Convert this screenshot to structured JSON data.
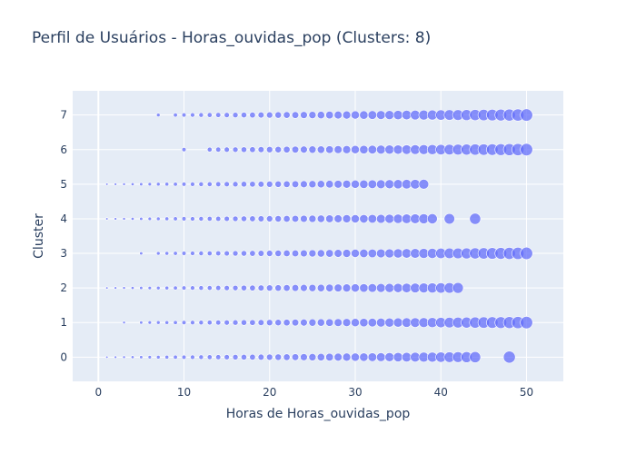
{
  "chart_data": {
    "type": "scatter",
    "title": "Perfil de Usuários - Horas_ouvidas_pop (Clusters: 8)",
    "xlabel": "Horas de Horas_ouvidas_pop",
    "ylabel": "Cluster",
    "xlim": [
      -3,
      54.3
    ],
    "ylim": [
      -0.7,
      7.7
    ],
    "xticks": [
      0,
      10,
      20,
      30,
      40,
      50
    ],
    "yticks": [
      0,
      1,
      2,
      3,
      4,
      5,
      6,
      7
    ],
    "grid": true,
    "marker_color": "#636efa",
    "plot_bg": "#e5ecf6",
    "series": [
      {
        "cluster": 7,
        "x": [
          7,
          9,
          10,
          11,
          12,
          13,
          14,
          15,
          16,
          17,
          18,
          19,
          20,
          21,
          22,
          23,
          24,
          25,
          26,
          27,
          28,
          29,
          30,
          31,
          32,
          33,
          34,
          35,
          36,
          37,
          38,
          39,
          40,
          41,
          42,
          43,
          44,
          45,
          46,
          47,
          48,
          49,
          50
        ]
      },
      {
        "cluster": 6,
        "x": [
          10,
          13,
          14,
          15,
          16,
          17,
          18,
          19,
          20,
          21,
          22,
          23,
          24,
          25,
          26,
          27,
          28,
          29,
          30,
          31,
          32,
          33,
          34,
          35,
          36,
          37,
          38,
          39,
          40,
          41,
          42,
          43,
          44,
          45,
          46,
          47,
          48,
          49,
          50
        ]
      },
      {
        "cluster": 5,
        "x": [
          1,
          2,
          3,
          4,
          5,
          6,
          7,
          8,
          9,
          10,
          11,
          12,
          13,
          14,
          15,
          16,
          17,
          18,
          19,
          20,
          21,
          22,
          23,
          24,
          25,
          26,
          27,
          28,
          29,
          30,
          31,
          32,
          33,
          34,
          35,
          36,
          37,
          38
        ]
      },
      {
        "cluster": 4,
        "x": [
          1,
          2,
          3,
          4,
          5,
          6,
          7,
          8,
          9,
          10,
          11,
          12,
          13,
          14,
          15,
          16,
          17,
          18,
          19,
          20,
          21,
          22,
          23,
          24,
          25,
          26,
          27,
          28,
          29,
          30,
          31,
          32,
          33,
          34,
          35,
          36,
          37,
          38,
          39,
          41,
          44
        ]
      },
      {
        "cluster": 3,
        "x": [
          5,
          7,
          8,
          9,
          10,
          11,
          12,
          13,
          14,
          15,
          16,
          17,
          18,
          19,
          20,
          21,
          22,
          23,
          24,
          25,
          26,
          27,
          28,
          29,
          30,
          31,
          32,
          33,
          34,
          35,
          36,
          37,
          38,
          39,
          40,
          41,
          42,
          43,
          44,
          45,
          46,
          47,
          48,
          49,
          50
        ]
      },
      {
        "cluster": 2,
        "x": [
          1,
          2,
          3,
          4,
          5,
          6,
          7,
          8,
          9,
          10,
          11,
          12,
          13,
          14,
          15,
          16,
          17,
          18,
          19,
          20,
          21,
          22,
          23,
          24,
          25,
          26,
          27,
          28,
          29,
          30,
          31,
          32,
          33,
          34,
          35,
          36,
          37,
          38,
          39,
          40,
          41,
          42
        ]
      },
      {
        "cluster": 1,
        "x": [
          3,
          5,
          6,
          7,
          8,
          9,
          10,
          11,
          12,
          13,
          14,
          15,
          16,
          17,
          18,
          19,
          20,
          21,
          22,
          23,
          24,
          25,
          26,
          27,
          28,
          29,
          30,
          31,
          32,
          33,
          34,
          35,
          36,
          37,
          38,
          39,
          40,
          41,
          42,
          43,
          44,
          45,
          46,
          47,
          48,
          49,
          50
        ]
      },
      {
        "cluster": 0,
        "x": [
          1,
          2,
          3,
          4,
          5,
          6,
          7,
          8,
          9,
          10,
          11,
          12,
          13,
          14,
          15,
          16,
          17,
          18,
          19,
          20,
          21,
          22,
          23,
          24,
          25,
          26,
          27,
          28,
          29,
          30,
          31,
          32,
          33,
          34,
          35,
          36,
          37,
          38,
          39,
          40,
          41,
          42,
          43,
          44,
          48
        ]
      }
    ]
  }
}
